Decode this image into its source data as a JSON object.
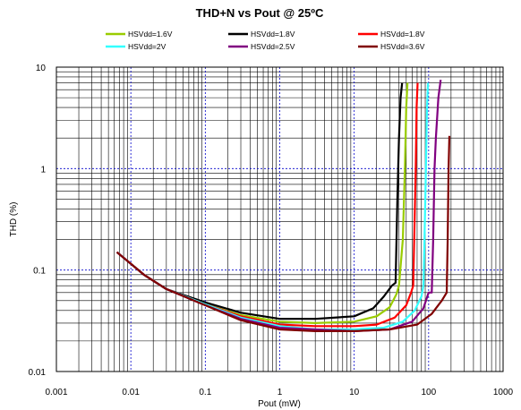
{
  "chart_data": {
    "type": "line",
    "title": "THD+N vs Pout @  25ºC",
    "xlabel": "Pout (mW)",
    "ylabel": "THD (%)",
    "x_scale": "log",
    "y_scale": "log",
    "xlim": [
      0.001,
      1000
    ],
    "ylim": [
      0.01,
      10
    ],
    "x_ticks": [
      "0.001",
      "0.01",
      "0.1",
      "1",
      "10",
      "100",
      "1000"
    ],
    "y_ticks": [
      "0.01",
      "0.1",
      "1",
      "10"
    ],
    "grid": true,
    "legend_position": "top",
    "series": [
      {
        "name": "HSVdd=1.6V",
        "color": "#99cc00",
        "points": [
          [
            0.0065,
            0.15
          ],
          [
            0.015,
            0.09
          ],
          [
            0.03,
            0.065
          ],
          [
            0.1,
            0.046
          ],
          [
            0.3,
            0.036
          ],
          [
            1,
            0.031
          ],
          [
            3,
            0.03
          ],
          [
            10,
            0.031
          ],
          [
            20,
            0.035
          ],
          [
            30,
            0.043
          ],
          [
            37,
            0.058
          ],
          [
            40,
            0.07
          ],
          [
            45,
            0.2
          ],
          [
            48,
            1.0
          ],
          [
            50,
            4.0
          ],
          [
            52,
            7.0
          ]
        ]
      },
      {
        "name": "HSVdd=1.8V",
        "color": "#000000",
        "points": [
          [
            0.0065,
            0.15
          ],
          [
            0.015,
            0.09
          ],
          [
            0.03,
            0.065
          ],
          [
            0.1,
            0.048
          ],
          [
            0.3,
            0.038
          ],
          [
            1,
            0.033
          ],
          [
            3,
            0.033
          ],
          [
            10,
            0.035
          ],
          [
            18,
            0.042
          ],
          [
            25,
            0.055
          ],
          [
            32,
            0.07
          ],
          [
            36,
            0.075
          ],
          [
            38,
            0.5
          ],
          [
            40,
            2.0
          ],
          [
            42,
            5.0
          ],
          [
            44,
            7.0
          ]
        ]
      },
      {
        "name": "HSVdd=1.8V",
        "color": "#ff0000",
        "points": [
          [
            0.0065,
            0.15
          ],
          [
            0.015,
            0.09
          ],
          [
            0.03,
            0.065
          ],
          [
            0.1,
            0.046
          ],
          [
            0.3,
            0.035
          ],
          [
            1,
            0.029
          ],
          [
            3,
            0.028
          ],
          [
            10,
            0.028
          ],
          [
            20,
            0.029
          ],
          [
            35,
            0.034
          ],
          [
            50,
            0.045
          ],
          [
            58,
            0.06
          ],
          [
            62,
            0.07
          ],
          [
            64,
            0.2
          ],
          [
            67,
            1.0
          ],
          [
            69,
            4.0
          ],
          [
            71,
            7.0
          ]
        ]
      },
      {
        "name": "HSVdd=2V",
        "color": "#33ffff",
        "points": [
          [
            0.0065,
            0.15
          ],
          [
            0.015,
            0.09
          ],
          [
            0.03,
            0.065
          ],
          [
            0.1,
            0.046
          ],
          [
            0.3,
            0.034
          ],
          [
            1,
            0.028
          ],
          [
            3,
            0.026
          ],
          [
            10,
            0.026
          ],
          [
            25,
            0.027
          ],
          [
            45,
            0.031
          ],
          [
            65,
            0.04
          ],
          [
            80,
            0.055
          ],
          [
            85,
            0.07
          ],
          [
            88,
            0.2
          ],
          [
            92,
            1.0
          ],
          [
            95,
            4.0
          ],
          [
            98,
            7.0
          ]
        ]
      },
      {
        "name": "HSVdd=2.5V",
        "color": "#800080",
        "points": [
          [
            0.0065,
            0.15
          ],
          [
            0.015,
            0.09
          ],
          [
            0.03,
            0.065
          ],
          [
            0.1,
            0.045
          ],
          [
            0.3,
            0.033
          ],
          [
            1,
            0.027
          ],
          [
            3,
            0.026
          ],
          [
            10,
            0.025
          ],
          [
            30,
            0.026
          ],
          [
            60,
            0.031
          ],
          [
            85,
            0.042
          ],
          [
            100,
            0.06
          ],
          [
            110,
            0.06
          ],
          [
            115,
            0.2
          ],
          [
            120,
            1.0
          ],
          [
            125,
            2.0
          ],
          [
            135,
            5.0
          ],
          [
            145,
            7.5
          ]
        ]
      },
      {
        "name": "HSVdd=3.6V",
        "color": "#800000",
        "points": [
          [
            0.0065,
            0.15
          ],
          [
            0.015,
            0.09
          ],
          [
            0.03,
            0.065
          ],
          [
            0.1,
            0.045
          ],
          [
            0.3,
            0.032
          ],
          [
            1,
            0.026
          ],
          [
            3,
            0.025
          ],
          [
            10,
            0.025
          ],
          [
            30,
            0.026
          ],
          [
            70,
            0.029
          ],
          [
            110,
            0.037
          ],
          [
            150,
            0.05
          ],
          [
            175,
            0.06
          ],
          [
            180,
            0.2
          ],
          [
            185,
            1.0
          ],
          [
            190,
            2.1
          ]
        ]
      }
    ]
  }
}
